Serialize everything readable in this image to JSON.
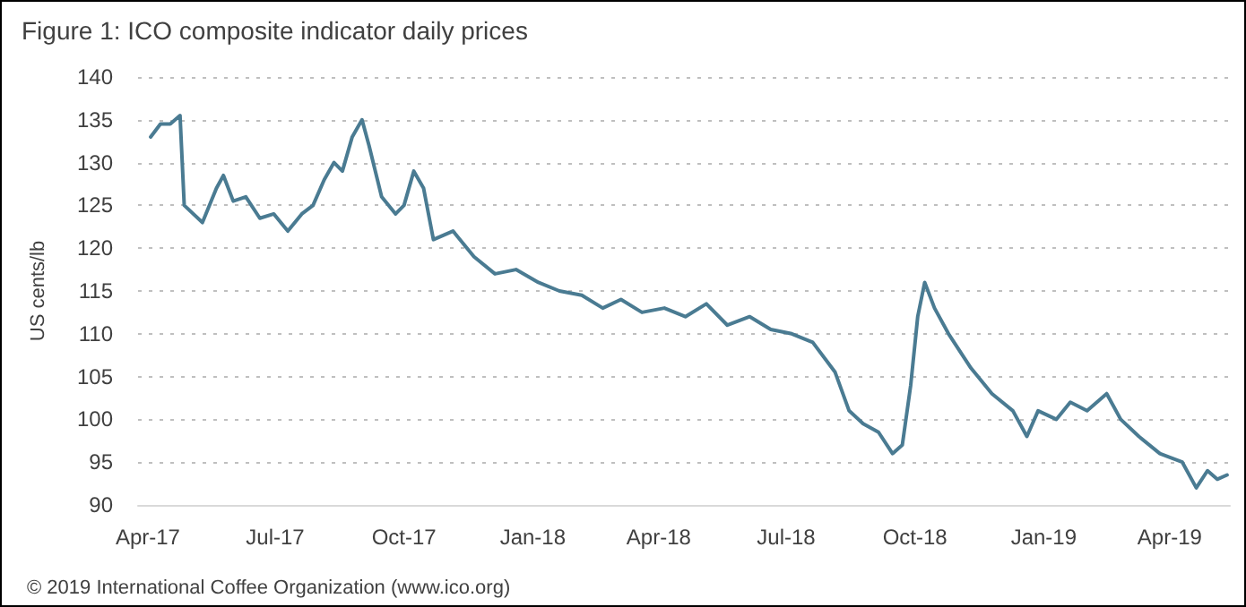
{
  "chart_data": {
    "type": "line",
    "title": "Figure 1: ICO composite indicator daily prices",
    "ylabel": "US cents/lb",
    "annotations": [
      "© 2019 International Coffee Organization (www.ico.org)"
    ],
    "x": [
      "2017-04-03",
      "2017-04-10",
      "2017-04-17",
      "2017-04-24",
      "2017-04-27",
      "2017-05-10",
      "2017-05-20",
      "2017-05-25",
      "2017-06-01",
      "2017-06-10",
      "2017-06-20",
      "2017-06-30",
      "2017-07-10",
      "2017-07-20",
      "2017-07-28",
      "2017-08-05",
      "2017-08-12",
      "2017-08-18",
      "2017-08-25",
      "2017-09-01",
      "2017-09-06",
      "2017-09-15",
      "2017-09-25",
      "2017-10-01",
      "2017-10-08",
      "2017-10-15",
      "2017-10-22",
      "2017-11-05",
      "2017-11-20",
      "2017-12-05",
      "2017-12-20",
      "2018-01-05",
      "2018-01-20",
      "2018-02-05",
      "2018-02-20",
      "2018-03-05",
      "2018-03-20",
      "2018-04-05",
      "2018-04-20",
      "2018-05-05",
      "2018-05-20",
      "2018-06-05",
      "2018-06-20",
      "2018-07-05",
      "2018-07-20",
      "2018-08-05",
      "2018-08-15",
      "2018-08-25",
      "2018-09-05",
      "2018-09-15",
      "2018-09-22",
      "2018-09-28",
      "2018-10-03",
      "2018-10-08",
      "2018-10-15",
      "2018-10-25",
      "2018-11-10",
      "2018-11-25",
      "2018-12-10",
      "2018-12-20",
      "2018-12-28",
      "2019-01-10",
      "2019-01-20",
      "2019-02-01",
      "2019-02-15",
      "2019-02-25",
      "2019-03-10",
      "2019-03-25",
      "2019-04-10",
      "2019-04-20",
      "2019-04-28",
      "2019-05-05",
      "2019-05-12"
    ],
    "series": [
      {
        "color": "#4a7b92",
        "values": [
          133,
          134.5,
          134.5,
          135.5,
          125,
          123,
          127,
          128.5,
          125.5,
          126,
          123.5,
          124,
          122,
          124,
          125,
          128,
          130,
          129,
          133,
          135,
          132,
          126,
          124,
          125,
          129,
          127,
          121,
          122,
          119,
          117,
          117.5,
          116,
          115,
          114.5,
          113,
          114,
          112.5,
          113,
          112,
          113.5,
          111,
          112,
          110.5,
          110,
          109,
          105.5,
          101,
          99.5,
          98.5,
          96,
          97,
          104,
          112,
          116,
          113,
          110,
          106,
          103,
          101,
          98,
          101,
          100,
          102,
          101,
          103,
          100,
          98,
          96,
          95,
          92,
          94,
          93,
          93.5
        ]
      }
    ],
    "xlim": [
      "2017-03-25",
      "2019-05-14"
    ],
    "xticks": [
      {
        "value": "2017-04-01",
        "label": "Apr-17"
      },
      {
        "value": "2017-07-01",
        "label": "Jul-17"
      },
      {
        "value": "2017-10-01",
        "label": "Oct-17"
      },
      {
        "value": "2018-01-01",
        "label": "Jan-18"
      },
      {
        "value": "2018-04-01",
        "label": "Apr-18"
      },
      {
        "value": "2018-07-01",
        "label": "Jul-18"
      },
      {
        "value": "2018-10-01",
        "label": "Oct-18"
      },
      {
        "value": "2019-01-01",
        "label": "Jan-19"
      },
      {
        "value": "2019-04-01",
        "label": "Apr-19"
      }
    ],
    "ylim": [
      90,
      140
    ],
    "yticks": [
      90,
      95,
      100,
      105,
      110,
      115,
      120,
      125,
      130,
      135,
      140
    ],
    "grid": "y",
    "marker": "none",
    "line_style": "solid"
  }
}
